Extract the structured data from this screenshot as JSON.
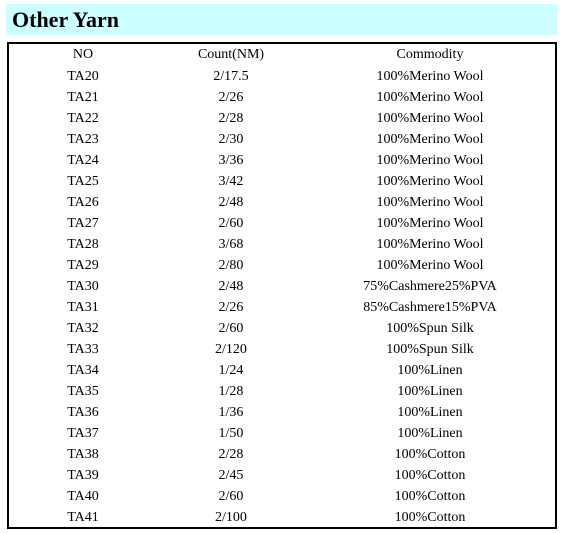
{
  "title": "Other Yarn",
  "table": {
    "headers": [
      "NO",
      "Count(NM)",
      "Commodity"
    ],
    "rows": [
      [
        "TA20",
        "2/17.5",
        "100%Merino Wool"
      ],
      [
        "TA21",
        "2/26",
        "100%Merino Wool"
      ],
      [
        "TA22",
        "2/28",
        "100%Merino Wool"
      ],
      [
        "TA23",
        "2/30",
        "100%Merino Wool"
      ],
      [
        "TA24",
        "3/36",
        "100%Merino Wool"
      ],
      [
        "TA25",
        "3/42",
        "100%Merino Wool"
      ],
      [
        "TA26",
        "2/48",
        "100%Merino Wool"
      ],
      [
        "TA27",
        "2/60",
        "100%Merino Wool"
      ],
      [
        "TA28",
        "3/68",
        "100%Merino Wool"
      ],
      [
        "TA29",
        "2/80",
        "100%Merino Wool"
      ],
      [
        "TA30",
        "2/48",
        "75%Cashmere25%PVA"
      ],
      [
        "TA31",
        "2/26",
        "85%Cashmere15%PVA"
      ],
      [
        "TA32",
        "2/60",
        "100%Spun Silk"
      ],
      [
        "TA33",
        "2/120",
        "100%Spun Silk"
      ],
      [
        "TA34",
        "1/24",
        "100%Linen"
      ],
      [
        "TA35",
        "1/28",
        "100%Linen"
      ],
      [
        "TA36",
        "1/36",
        "100%Linen"
      ],
      [
        "TA37",
        "1/50",
        "100%Linen"
      ],
      [
        "TA38",
        "2/28",
        "100%Cotton"
      ],
      [
        "TA39",
        "2/45",
        "100%Cotton"
      ],
      [
        "TA40",
        "2/60",
        "100%Cotton"
      ],
      [
        "TA41",
        "2/100",
        "100%Cotton"
      ]
    ]
  },
  "colors": {
    "title_background": "#ccffff",
    "border": "#000000"
  }
}
